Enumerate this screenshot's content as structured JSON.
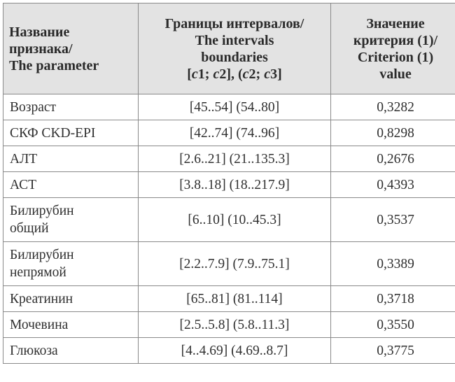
{
  "table": {
    "headers": {
      "parameter": [
        "Название",
        "признака/",
        "The parameter"
      ],
      "intervals": [
        "Границы интервалов/",
        "The intervals",
        "boundaries"
      ],
      "intervals_formula": {
        "open1": "[",
        "c1": "c",
        "n1": "1",
        "sep1": "; ",
        "c2a": "c",
        "n2a": "2",
        "close1": "], (",
        "c2b": "c",
        "n2b": "2",
        "sep2": "; ",
        "c3": "c",
        "n3": "3",
        "close2": "]"
      },
      "criterion": [
        "Значение",
        "критерия (1)/",
        "Criterion (1)",
        "value"
      ]
    },
    "rows": [
      {
        "name": [
          "Возраст"
        ],
        "range": "[45..54] (54..80]",
        "value": "0,3282"
      },
      {
        "name": [
          "СКФ CKD-EPI"
        ],
        "range": "[42..74] (74..96]",
        "value": "0,8298"
      },
      {
        "name": [
          "АЛТ"
        ],
        "range": "[2.6..21] (21..135.3]",
        "value": "0,2676"
      },
      {
        "name": [
          "АСТ"
        ],
        "range": "[3.8..18] (18..217.9]",
        "value": "0,4393"
      },
      {
        "name": [
          "Билирубин",
          "общий"
        ],
        "range": "[6..10] (10..45.3]",
        "value": "0,3537"
      },
      {
        "name": [
          "Билирубин",
          "непрямой"
        ],
        "range": "[2.2..7.9] (7.9..75.1]",
        "value": "0,3389"
      },
      {
        "name": [
          "Креатинин"
        ],
        "range": "[65..81] (81..114]",
        "value": "0,3718"
      },
      {
        "name": [
          "Мочевина"
        ],
        "range": "[2.5..5.8] (5.8..11.3]",
        "value": "0,3550"
      },
      {
        "name": [
          "Глюкоза"
        ],
        "range": "[4..4.69] (4.69..8.7]",
        "value": "0,3775"
      }
    ]
  }
}
